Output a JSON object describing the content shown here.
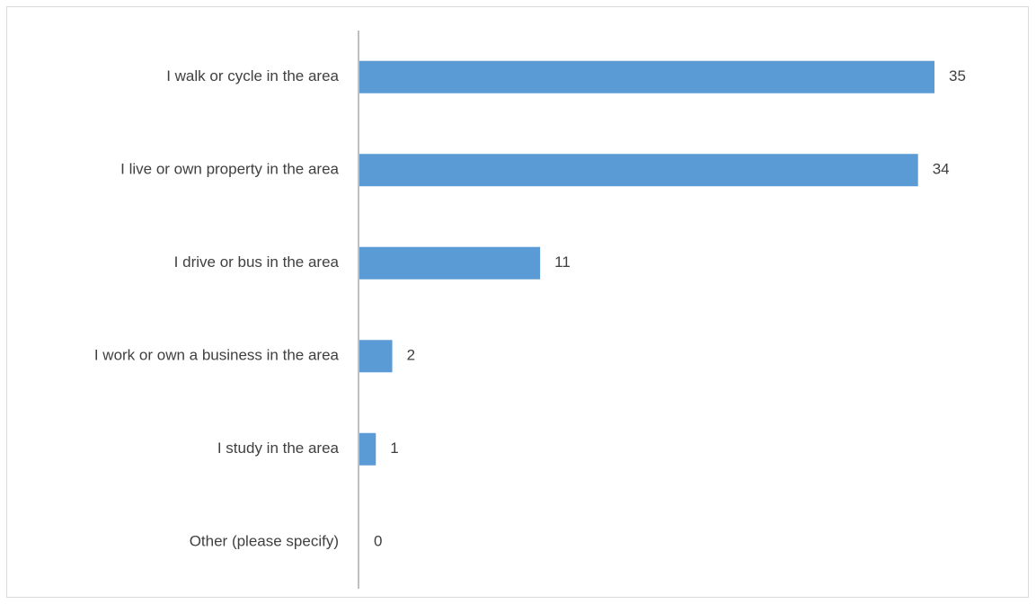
{
  "chart_data": {
    "type": "bar",
    "orientation": "horizontal",
    "categories": [
      "I walk or cycle in the area",
      "I live or own property in the area",
      "I drive or bus in the area",
      "I work or own a business in the area",
      "I study in the area",
      "Other (please specify)"
    ],
    "values": [
      35,
      34,
      11,
      2,
      1,
      0
    ],
    "title": "",
    "xlabel": "",
    "ylabel": "",
    "xlim": [
      0,
      35
    ],
    "grid": false,
    "legend": "none",
    "data_labels": true,
    "bar_color": "#5b9bd5",
    "axis_color": "#bfbfbf",
    "label_color": "#404040"
  }
}
